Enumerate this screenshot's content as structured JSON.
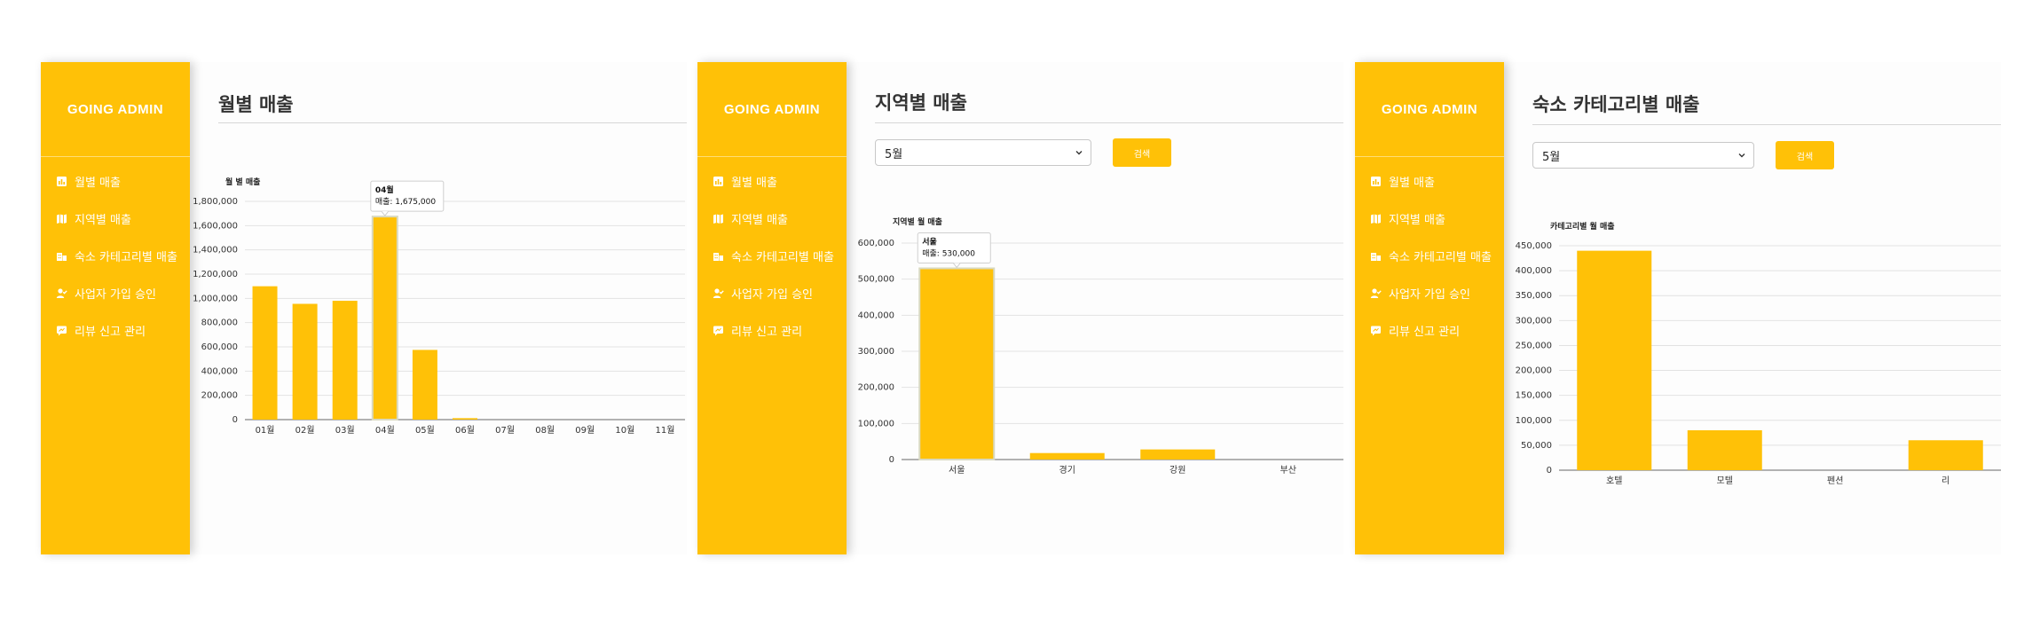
{
  "brand": "GOING ADMIN",
  "menu": [
    {
      "label": "월별 매출",
      "icon": "bar-chart-icon"
    },
    {
      "label": "지역별 매출",
      "icon": "map-icon"
    },
    {
      "label": "숙소 카테고리별 매출",
      "icon": "building-icon"
    },
    {
      "label": "사업자 가입 승인",
      "icon": "user-check-icon"
    },
    {
      "label": "리뷰 신고 관리",
      "icon": "report-icon"
    }
  ],
  "colors": {
    "accent": "#FFC107",
    "bar": "#FFC107"
  },
  "panels": [
    {
      "title": "월별 매출"
    },
    {
      "title": "지역별 매출",
      "select_value": "5월",
      "button_label": "검색"
    },
    {
      "title": "숙소 카테고리별 매출",
      "select_value": "5월",
      "button_label": "검색"
    }
  ],
  "chart_data": [
    {
      "type": "bar",
      "title": "월 별 매출",
      "categories": [
        "01월",
        "02월",
        "03월",
        "04월",
        "05월",
        "06월",
        "07월",
        "08월",
        "09월",
        "10월",
        "11월"
      ],
      "values": [
        1100000,
        955000,
        980000,
        1675000,
        575000,
        12000,
        0,
        0,
        0,
        0,
        0
      ],
      "yticks": [
        "0",
        "200,000",
        "400,000",
        "600,000",
        "800,000",
        "1,000,000",
        "1,200,000",
        "1,400,000",
        "1,600,000",
        "1,800,000"
      ],
      "ylim": [
        0,
        1800000
      ],
      "grid": true,
      "tooltip": {
        "title": "04월",
        "label": "매출: 1,675,000",
        "index": 3
      }
    },
    {
      "type": "bar",
      "title": "지역별 월 매출",
      "categories": [
        "서울",
        "경기",
        "강원",
        "부산"
      ],
      "values": [
        530000,
        18000,
        28000,
        0
      ],
      "yticks": [
        "0",
        "100,000",
        "200,000",
        "300,000",
        "400,000",
        "500,000",
        "600,000"
      ],
      "ylim": [
        0,
        600000
      ],
      "grid": true,
      "tooltip": {
        "title": "서울",
        "label": "매출: 530,000",
        "index": 0
      }
    },
    {
      "type": "bar",
      "title": "카테고리별 월 매출",
      "categories": [
        "호텔",
        "모텔",
        "펜션",
        "리"
      ],
      "values": [
        440000,
        80000,
        0,
        60000
      ],
      "yticks": [
        "0",
        "50,000",
        "100,000",
        "150,000",
        "200,000",
        "250,000",
        "300,000",
        "350,000",
        "400,000",
        "450,000"
      ],
      "ylim": [
        0,
        450000
      ],
      "grid": true
    }
  ]
}
